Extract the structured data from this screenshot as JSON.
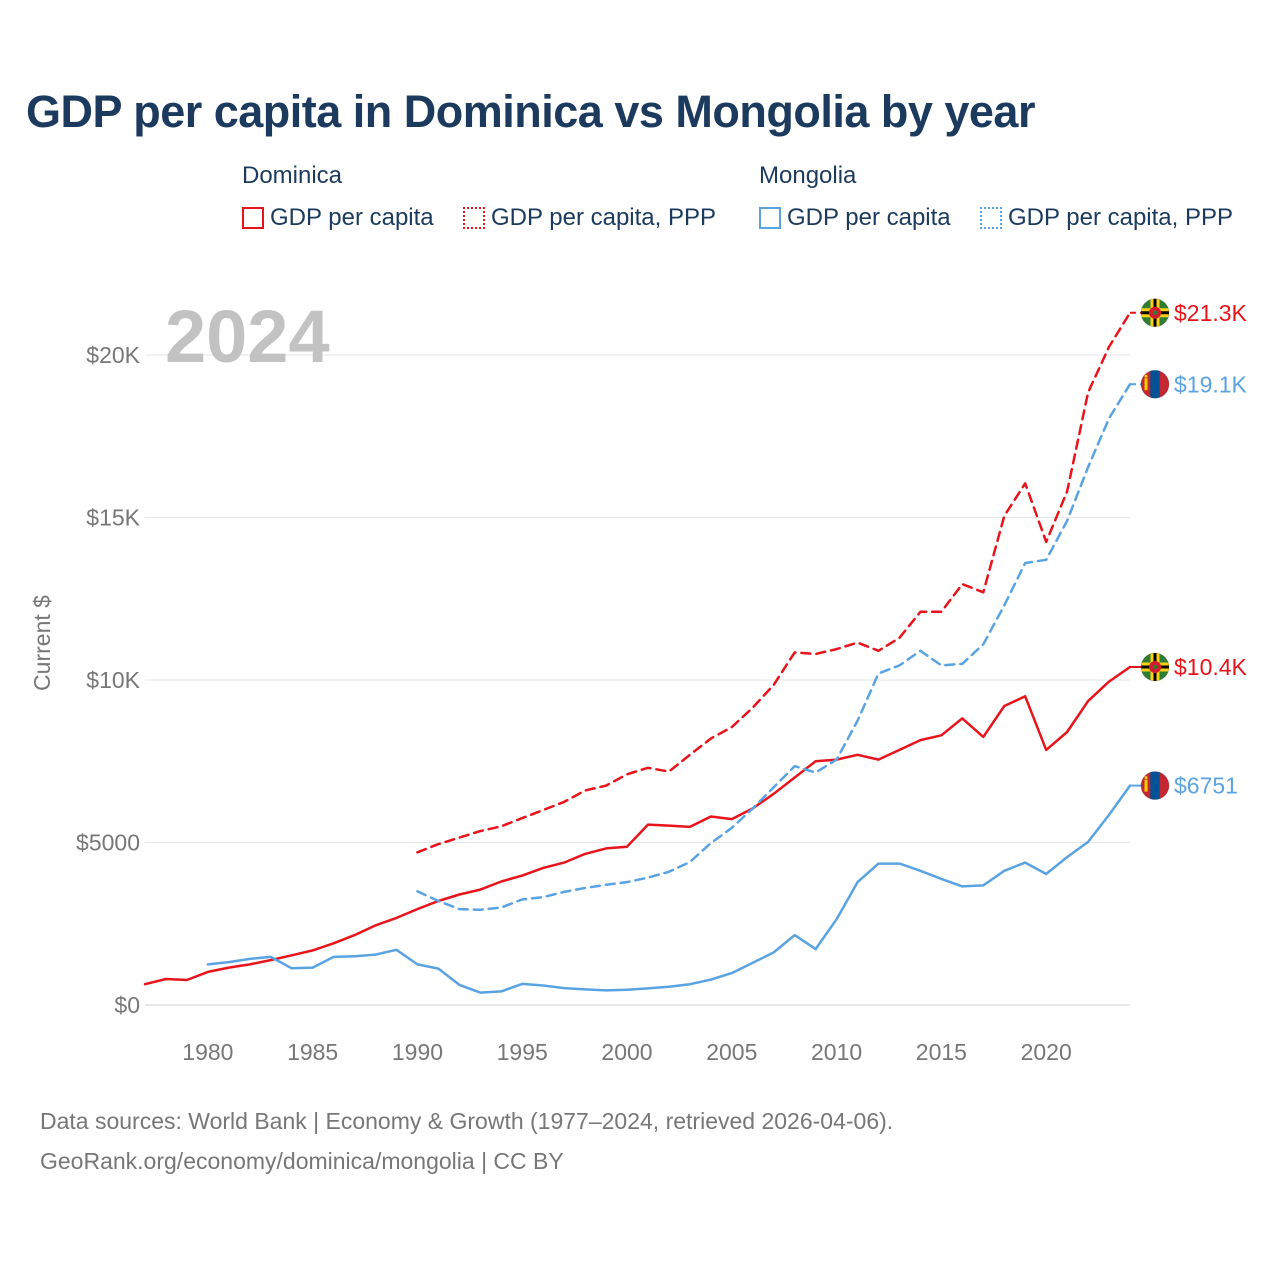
{
  "chart_data": {
    "type": "line",
    "title": "GDP per capita in Dominica vs Mongolia by year",
    "ylabel": "Current $",
    "xlabel": "",
    "xlim": [
      1977,
      2024
    ],
    "ylim": [
      0,
      22000
    ],
    "year_label": "2024",
    "x_ticks": [
      1980,
      1985,
      1990,
      1995,
      2000,
      2005,
      2010,
      2015,
      2020
    ],
    "x_tick_labels": [
      "1980",
      "1985",
      "1990",
      "1995",
      "2000",
      "2005",
      "2010",
      "2015",
      "2020"
    ],
    "y_ticks": [
      0,
      5000,
      10000,
      15000,
      20000
    ],
    "y_tick_labels": [
      "$0",
      "$5000",
      "$10K",
      "$15K",
      "$20K"
    ],
    "legend_groups": [
      {
        "country": "Dominica",
        "items": [
          "GDP per capita",
          "GDP per capita, PPP"
        ]
      },
      {
        "country": "Mongolia",
        "items": [
          "GDP per capita",
          "GDP per capita, PPP"
        ]
      }
    ],
    "series": [
      {
        "name": "Dominica GDP per capita",
        "country": "Dominica",
        "color": "#e8141c",
        "style": "solid",
        "end_label": "$10.4K",
        "x": [
          1977,
          1978,
          1979,
          1980,
          1981,
          1982,
          1983,
          1984,
          1985,
          1986,
          1987,
          1988,
          1989,
          1990,
          1991,
          1992,
          1993,
          1994,
          1995,
          1996,
          1997,
          1998,
          1999,
          2000,
          2001,
          2002,
          2003,
          2004,
          2005,
          2006,
          2007,
          2008,
          2009,
          2010,
          2011,
          2012,
          2013,
          2014,
          2015,
          2016,
          2017,
          2018,
          2019,
          2020,
          2021,
          2022,
          2023,
          2024
        ],
        "values": [
          640,
          800,
          770,
          1020,
          1150,
          1250,
          1380,
          1530,
          1680,
          1900,
          2150,
          2450,
          2680,
          2950,
          3200,
          3400,
          3550,
          3800,
          3980,
          4220,
          4380,
          4650,
          4820,
          4870,
          5550,
          5520,
          5480,
          5800,
          5720,
          6050,
          6500,
          7000,
          7500,
          7550,
          7700,
          7550,
          7850,
          8150,
          8300,
          8820,
          8250,
          9200,
          9500,
          7850,
          8400,
          9350,
          9950,
          10400
        ]
      },
      {
        "name": "Dominica GDP per capita, PPP",
        "country": "Dominica",
        "color": "#e8141c",
        "style": "dashed",
        "end_label": "$21.3K",
        "x": [
          1990,
          1991,
          1992,
          1993,
          1994,
          1995,
          1996,
          1997,
          1998,
          1999,
          2000,
          2001,
          2002,
          2003,
          2004,
          2005,
          2006,
          2007,
          2008,
          2009,
          2010,
          2011,
          2012,
          2013,
          2014,
          2015,
          2016,
          2017,
          2018,
          2019,
          2020,
          2021,
          2022,
          2023,
          2024
        ],
        "values": [
          4700,
          4950,
          5150,
          5350,
          5500,
          5750,
          6000,
          6250,
          6600,
          6750,
          7100,
          7300,
          7180,
          7700,
          8200,
          8550,
          9150,
          9850,
          10850,
          10800,
          10950,
          11150,
          10900,
          11300,
          12100,
          12100,
          12950,
          12700,
          15050,
          16050,
          14250,
          15800,
          18850,
          20250,
          21300
        ]
      },
      {
        "name": "Mongolia GDP per capita",
        "country": "Mongolia",
        "color": "#5aa3e3",
        "style": "solid",
        "end_label": "$6751",
        "x": [
          1980,
          1981,
          1982,
          1983,
          1984,
          1985,
          1986,
          1987,
          1988,
          1989,
          1990,
          1991,
          1992,
          1993,
          1994,
          1995,
          1996,
          1997,
          1998,
          1999,
          2000,
          2001,
          2002,
          2003,
          2004,
          2005,
          2006,
          2007,
          2008,
          2009,
          2010,
          2011,
          2012,
          2013,
          2014,
          2015,
          2016,
          2017,
          2018,
          2019,
          2020,
          2021,
          2022,
          2023,
          2024
        ],
        "values": [
          1250,
          1320,
          1420,
          1480,
          1130,
          1150,
          1480,
          1500,
          1550,
          1700,
          1250,
          1120,
          620,
          380,
          420,
          650,
          600,
          520,
          480,
          450,
          470,
          510,
          560,
          640,
          780,
          980,
          1300,
          1620,
          2150,
          1720,
          2640,
          3780,
          4350,
          4350,
          4130,
          3880,
          3650,
          3680,
          4130,
          4380,
          4030,
          4550,
          5020,
          5850,
          6751
        ]
      },
      {
        "name": "Mongolia GDP per capita, PPP",
        "country": "Mongolia",
        "color": "#5aa3e3",
        "style": "dashed",
        "end_label": "$19.1K",
        "x": [
          1990,
          1991,
          1992,
          1993,
          1994,
          1995,
          1996,
          1997,
          1998,
          1999,
          2000,
          2001,
          2002,
          2003,
          2004,
          2005,
          2006,
          2007,
          2008,
          2009,
          2010,
          2011,
          2012,
          2013,
          2014,
          2015,
          2016,
          2017,
          2018,
          2019,
          2020,
          2021,
          2022,
          2023,
          2024
        ],
        "values": [
          3500,
          3200,
          2950,
          2930,
          3000,
          3250,
          3320,
          3480,
          3600,
          3700,
          3780,
          3920,
          4100,
          4400,
          4980,
          5450,
          6050,
          6700,
          7350,
          7150,
          7550,
          8750,
          10200,
          10450,
          10900,
          10450,
          10500,
          11100,
          12300,
          13600,
          13700,
          14900,
          16550,
          18050,
          19100
        ]
      }
    ]
  },
  "legend": {
    "dominica": {
      "title": "Dominica",
      "item1": "GDP per capita",
      "item2": "GDP per capita, PPP"
    },
    "mongolia": {
      "title": "Mongolia",
      "item1": "GDP per capita",
      "item2": "GDP per capita, PPP"
    }
  },
  "footer": {
    "line1": "Data sources: World Bank | Economy & Growth (1977–2024, retrieved 2026-04-06).",
    "line2": "GeoRank.org/economy/dominica/mongolia | CC BY"
  },
  "colors": {
    "dominica": "#e8141c",
    "mongolia": "#5aa3e3",
    "title": "#1b3a5e"
  }
}
